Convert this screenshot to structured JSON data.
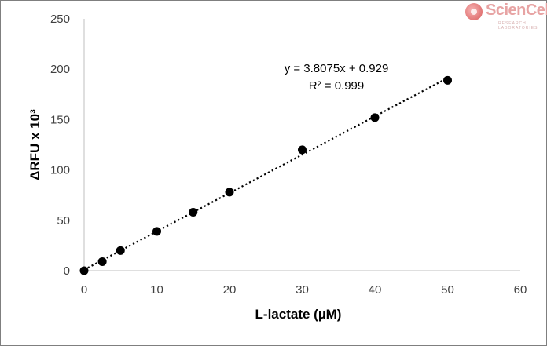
{
  "logo": {
    "text": "ScienCell",
    "subtitle": "RESEARCH LABORATORIES",
    "colors": {
      "mark": "#d95b5b",
      "text": "#e7a3a3"
    }
  },
  "chart_data": {
    "type": "scatter",
    "title": "",
    "xlabel": "L-lactate (µM)",
    "ylabel": "ΔRFU x 10³",
    "xlim": [
      0,
      60
    ],
    "ylim": [
      0,
      250
    ],
    "xticks": [
      0,
      10,
      20,
      30,
      40,
      50,
      60
    ],
    "yticks": [
      0,
      50,
      100,
      150,
      200,
      250
    ],
    "grid": false,
    "legend": "none",
    "series": [
      {
        "x": [
          0,
          2.5,
          5,
          10,
          15,
          20,
          30,
          40,
          50
        ],
        "y": [
          0,
          9,
          20,
          39,
          58,
          78,
          120,
          152,
          189
        ],
        "color": "#000000",
        "marker": "circle"
      }
    ],
    "trendline": {
      "type": "linear",
      "slope": 3.8075,
      "intercept": 0.929,
      "x_range": [
        0,
        50
      ],
      "style": "dotted",
      "color": "#000000"
    },
    "annotations": [
      {
        "text": "y = 3.8075x + 0.929"
      },
      {
        "text": "R² = 0.999"
      }
    ]
  }
}
